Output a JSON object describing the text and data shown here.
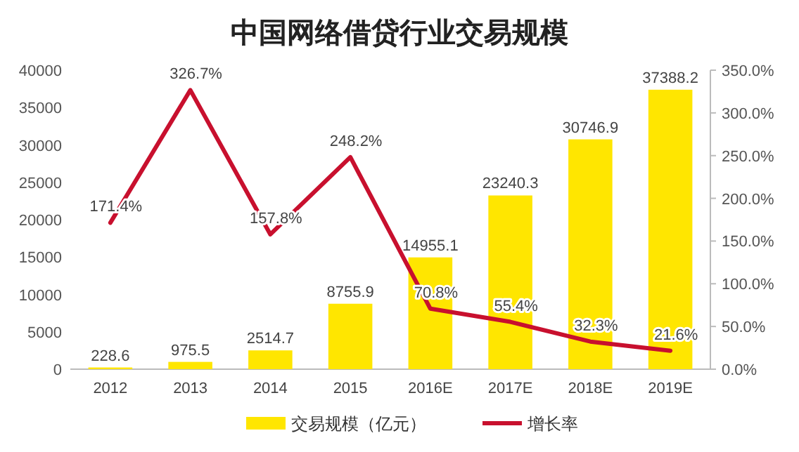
{
  "chart_data": {
    "type": "bar",
    "title": "中国网络借贷行业交易规模",
    "categories": [
      "2012",
      "2013",
      "2014",
      "2015",
      "2016E",
      "2017E",
      "2018E",
      "2019E"
    ],
    "series": [
      {
        "name": "交易规模（亿元）",
        "color": "#ffe600",
        "values": [
          228.6,
          975.5,
          2514.7,
          8755.9,
          14955.1,
          23240.3,
          30746.9,
          37388.2
        ],
        "value_labels": [
          "228.6",
          "975.5",
          "2514.7",
          "8755.9",
          "14955.1",
          "23240.3",
          "30746.9",
          "37388.2"
        ]
      },
      {
        "name": "增长率",
        "type": "line",
        "axis": "y2",
        "color": "#c8102e",
        "values": [
          171.4,
          326.7,
          157.8,
          248.2,
          70.8,
          55.4,
          32.3,
          21.6
        ],
        "value_labels": [
          "171.4%",
          "326.7%",
          "157.8%",
          "248.2%",
          "70.8%",
          "55.4%",
          "32.3%",
          "21.6%"
        ]
      }
    ],
    "ylim": [
      0,
      40000
    ],
    "yticks": [
      0,
      5000,
      10000,
      15000,
      20000,
      25000,
      30000,
      35000,
      40000
    ],
    "y2lim": [
      0,
      350
    ],
    "y2ticks": [
      {
        "value": 0,
        "label": "0.0%"
      },
      {
        "value": 50,
        "label": "50.0%"
      },
      {
        "value": 100,
        "label": "100.0%"
      },
      {
        "value": 150,
        "label": "150.0%"
      },
      {
        "value": 200,
        "label": "200.0%"
      },
      {
        "value": 250,
        "label": "250.0%"
      },
      {
        "value": 300,
        "label": "300.0%"
      },
      {
        "value": 350,
        "label": "350.0%"
      }
    ],
    "legend": "bottom"
  }
}
